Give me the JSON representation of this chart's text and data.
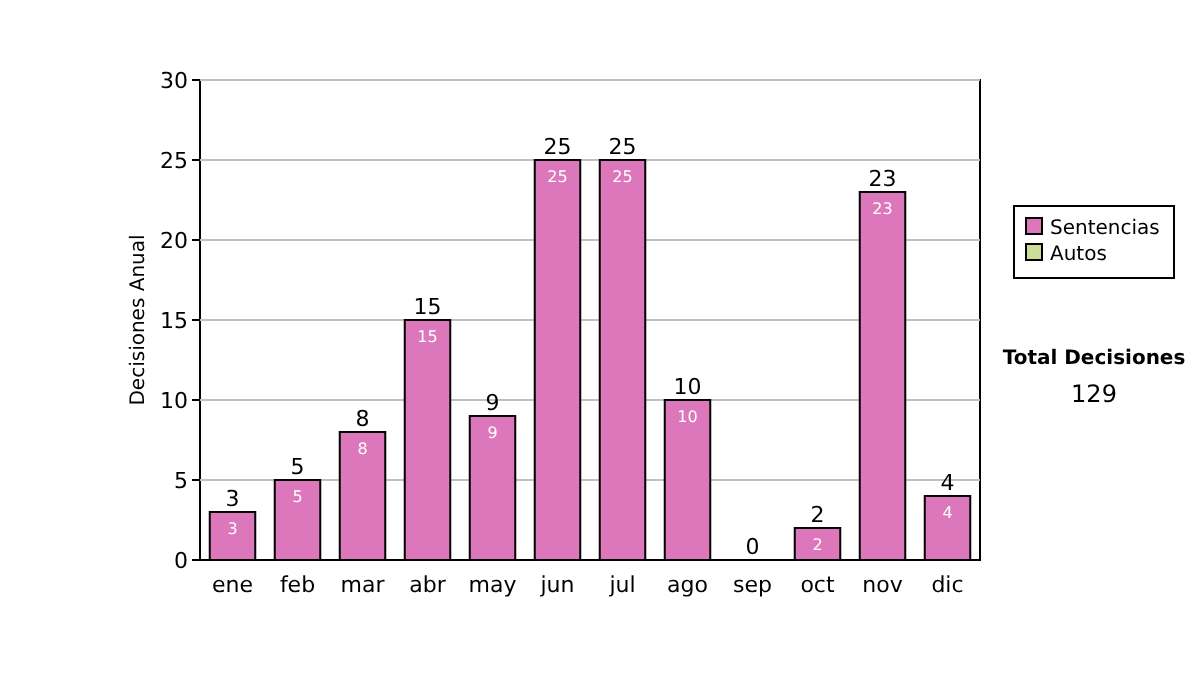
{
  "chart_data": {
    "type": "bar",
    "stacked": true,
    "ylabel": "Decisiones Anual",
    "categories": [
      "ene",
      "feb",
      "mar",
      "abr",
      "may",
      "jun",
      "jul",
      "ago",
      "sep",
      "oct",
      "nov",
      "dic"
    ],
    "series": [
      {
        "name": "Sentencias",
        "color": "#dd77bb",
        "values": [
          3,
          5,
          8,
          15,
          9,
          25,
          25,
          10,
          0,
          2,
          23,
          4
        ],
        "value_labels": [
          "3",
          "5",
          "8",
          "15",
          "9",
          "25",
          "25",
          "10",
          null,
          "2",
          "23",
          "4"
        ]
      },
      {
        "name": "Autos",
        "color": "#ccdd99",
        "values": [
          0,
          0,
          0,
          0,
          0,
          0,
          0,
          0,
          0,
          0,
          0,
          0
        ]
      }
    ],
    "totals": [
      "3",
      "5",
      "8",
      "15",
      "9",
      "25",
      "25",
      "10",
      "0",
      "2",
      "23",
      "4"
    ],
    "ylim": [
      0,
      30
    ],
    "yticks": [
      0,
      5,
      10,
      15,
      20,
      25,
      30
    ],
    "grid": "y",
    "legend": "right",
    "annotations": [
      "Total Decisiones",
      "129"
    ]
  }
}
